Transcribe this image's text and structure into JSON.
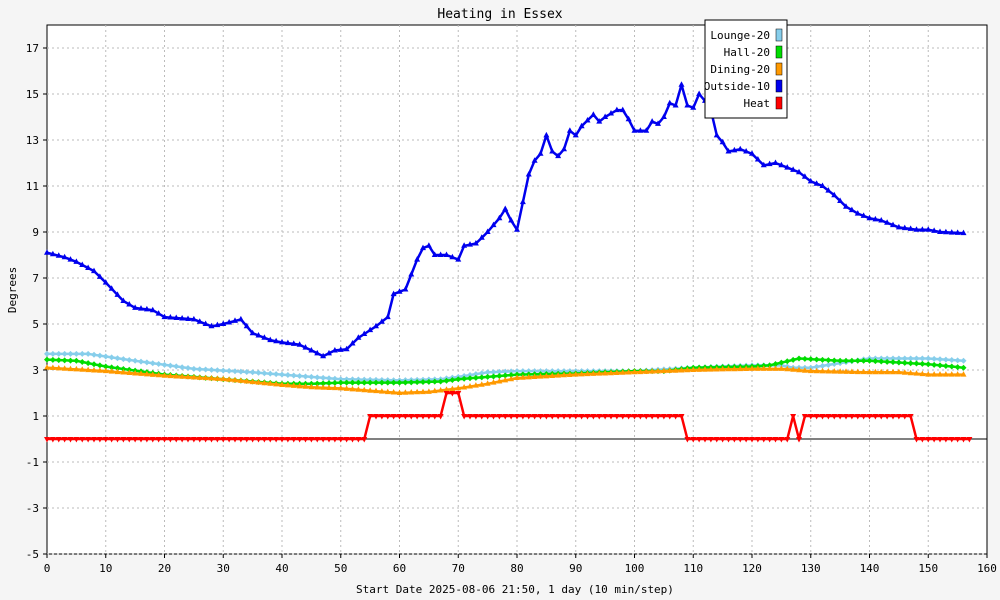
{
  "chart_data": {
    "type": "line",
    "title": "Heating in Essex",
    "xlabel": "Start Date 2025-08-06 21:50, 1 day (10 min/step)",
    "ylabel": "Degrees",
    "xlim": [
      0,
      160
    ],
    "ylim": [
      -5,
      18
    ],
    "x_ticks": [
      0,
      10,
      20,
      30,
      40,
      50,
      60,
      70,
      80,
      90,
      100,
      110,
      120,
      130,
      140,
      150,
      160
    ],
    "y_ticks": [
      -5,
      -3,
      -1,
      1,
      3,
      5,
      7,
      9,
      11,
      13,
      15,
      17
    ],
    "grid": true,
    "legend_position": "top-right",
    "series": [
      {
        "name": "Lounge-20",
        "color": "#87ceeb",
        "marker": "diamond",
        "points": [
          [
            0,
            3.7
          ],
          [
            7,
            3.7
          ],
          [
            15,
            3.4
          ],
          [
            25,
            3.05
          ],
          [
            35,
            2.9
          ],
          [
            45,
            2.7
          ],
          [
            50,
            2.6
          ],
          [
            60,
            2.55
          ],
          [
            67,
            2.6
          ],
          [
            70,
            2.7
          ],
          [
            75,
            2.9
          ],
          [
            80,
            2.95
          ],
          [
            90,
            2.95
          ],
          [
            100,
            2.95
          ],
          [
            110,
            3.1
          ],
          [
            120,
            3.2
          ],
          [
            125,
            3.2
          ],
          [
            127,
            3.1
          ],
          [
            130,
            3.1
          ],
          [
            140,
            3.5
          ],
          [
            150,
            3.5
          ],
          [
            156,
            3.4
          ]
        ]
      },
      {
        "name": "Hall-20",
        "color": "#00dd00",
        "marker": "diamond",
        "points": [
          [
            0,
            3.45
          ],
          [
            5,
            3.4
          ],
          [
            10,
            3.15
          ],
          [
            20,
            2.8
          ],
          [
            30,
            2.6
          ],
          [
            40,
            2.4
          ],
          [
            45,
            2.4
          ],
          [
            50,
            2.45
          ],
          [
            60,
            2.45
          ],
          [
            67,
            2.5
          ],
          [
            70,
            2.6
          ],
          [
            75,
            2.7
          ],
          [
            80,
            2.8
          ],
          [
            90,
            2.85
          ],
          [
            100,
            2.95
          ],
          [
            105,
            2.95
          ],
          [
            110,
            3.1
          ],
          [
            120,
            3.15
          ],
          [
            123,
            3.2
          ],
          [
            128,
            3.5
          ],
          [
            135,
            3.4
          ],
          [
            140,
            3.4
          ],
          [
            150,
            3.25
          ],
          [
            156,
            3.1
          ]
        ]
      },
      {
        "name": "Dining-20",
        "color": "#ff9900",
        "marker": "triangle-up",
        "points": [
          [
            0,
            3.1
          ],
          [
            10,
            2.95
          ],
          [
            20,
            2.75
          ],
          [
            30,
            2.6
          ],
          [
            40,
            2.35
          ],
          [
            45,
            2.25
          ],
          [
            50,
            2.2
          ],
          [
            55,
            2.1
          ],
          [
            60,
            2.0
          ],
          [
            65,
            2.05
          ],
          [
            70,
            2.2
          ],
          [
            75,
            2.4
          ],
          [
            80,
            2.65
          ],
          [
            90,
            2.8
          ],
          [
            100,
            2.9
          ],
          [
            110,
            3.0
          ],
          [
            120,
            3.05
          ],
          [
            125,
            3.05
          ],
          [
            130,
            2.95
          ],
          [
            140,
            2.9
          ],
          [
            145,
            2.9
          ],
          [
            150,
            2.8
          ],
          [
            156,
            2.8
          ]
        ]
      },
      {
        "name": "Outside-10",
        "color": "#0000ee",
        "marker": "triangle-up",
        "points": [
          [
            0,
            8.1
          ],
          [
            3,
            7.9
          ],
          [
            5,
            7.7
          ],
          [
            8,
            7.3
          ],
          [
            10,
            6.8
          ],
          [
            13,
            6.0
          ],
          [
            15,
            5.7
          ],
          [
            18,
            5.6
          ],
          [
            20,
            5.3
          ],
          [
            25,
            5.2
          ],
          [
            28,
            4.9
          ],
          [
            30,
            5.0
          ],
          [
            33,
            5.2
          ],
          [
            35,
            4.6
          ],
          [
            38,
            4.3
          ],
          [
            40,
            4.2
          ],
          [
            43,
            4.1
          ],
          [
            45,
            3.85
          ],
          [
            47,
            3.6
          ],
          [
            49,
            3.85
          ],
          [
            51,
            3.9
          ],
          [
            53,
            4.4
          ],
          [
            56,
            4.9
          ],
          [
            58,
            5.3
          ],
          [
            59,
            6.3
          ],
          [
            61,
            6.5
          ],
          [
            63,
            7.8
          ],
          [
            64,
            8.3
          ],
          [
            65,
            8.4
          ],
          [
            66,
            8.0
          ],
          [
            68,
            8.0
          ],
          [
            70,
            7.8
          ],
          [
            71,
            8.4
          ],
          [
            73,
            8.5
          ],
          [
            75,
            9.0
          ],
          [
            77,
            9.6
          ],
          [
            78,
            10.0
          ],
          [
            79,
            9.5
          ],
          [
            80,
            9.1
          ],
          [
            81,
            10.3
          ],
          [
            82,
            11.5
          ],
          [
            83,
            12.1
          ],
          [
            84,
            12.4
          ],
          [
            85,
            13.2
          ],
          [
            86,
            12.5
          ],
          [
            87,
            12.3
          ],
          [
            88,
            12.6
          ],
          [
            89,
            13.4
          ],
          [
            90,
            13.2
          ],
          [
            91,
            13.6
          ],
          [
            93,
            14.1
          ],
          [
            94,
            13.8
          ],
          [
            95,
            14.0
          ],
          [
            97,
            14.3
          ],
          [
            98,
            14.3
          ],
          [
            99,
            13.9
          ],
          [
            100,
            13.4
          ],
          [
            102,
            13.4
          ],
          [
            103,
            13.8
          ],
          [
            104,
            13.7
          ],
          [
            105,
            14.0
          ],
          [
            106,
            14.6
          ],
          [
            107,
            14.5
          ],
          [
            108,
            15.4
          ],
          [
            109,
            14.5
          ],
          [
            110,
            14.4
          ],
          [
            111,
            15.0
          ],
          [
            112,
            14.7
          ],
          [
            113,
            14.3
          ],
          [
            114,
            13.2
          ],
          [
            115,
            12.9
          ],
          [
            116,
            12.5
          ],
          [
            118,
            12.6
          ],
          [
            120,
            12.4
          ],
          [
            122,
            11.9
          ],
          [
            124,
            12.0
          ],
          [
            126,
            11.8
          ],
          [
            128,
            11.6
          ],
          [
            130,
            11.2
          ],
          [
            132,
            11.0
          ],
          [
            134,
            10.6
          ],
          [
            136,
            10.1
          ],
          [
            138,
            9.8
          ],
          [
            140,
            9.6
          ],
          [
            142,
            9.5
          ],
          [
            145,
            9.2
          ],
          [
            148,
            9.1
          ],
          [
            150,
            9.1
          ],
          [
            152,
            9.0
          ],
          [
            156,
            8.95
          ]
        ]
      },
      {
        "name": "Heat",
        "color": "#ff0000",
        "marker": "triangle-down",
        "points": [
          [
            0,
            0
          ],
          [
            54,
            0
          ],
          [
            55,
            1
          ],
          [
            67,
            1
          ],
          [
            68,
            2
          ],
          [
            70,
            2
          ],
          [
            71,
            1
          ],
          [
            108,
            1
          ],
          [
            109,
            0
          ],
          [
            126,
            0
          ],
          [
            127,
            1
          ],
          [
            128,
            0
          ],
          [
            129,
            1
          ],
          [
            147,
            1
          ],
          [
            148,
            0
          ],
          [
            157,
            0
          ]
        ]
      }
    ]
  }
}
